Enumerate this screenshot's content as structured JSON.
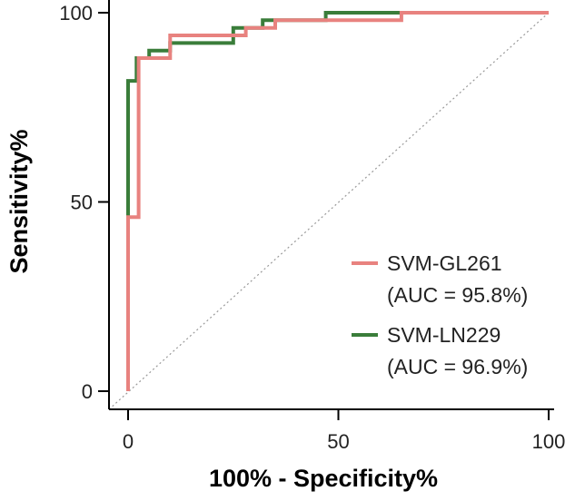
{
  "chart_data": {
    "type": "line",
    "title": "",
    "xlabel": "100% - Specificity%",
    "ylabel": "Sensitivity%",
    "xlim": [
      0,
      100
    ],
    "ylim": [
      0,
      100
    ],
    "x_ticks": [
      "0",
      "50",
      "100"
    ],
    "y_ticks": [
      "0",
      "50",
      "100"
    ],
    "grid": false,
    "legend_position": "bottom-right",
    "reference_line": {
      "style": "dotted",
      "color": "#999999",
      "from": [
        0,
        0
      ],
      "to": [
        100,
        100
      ]
    },
    "series": [
      {
        "name": "SVM-GL261",
        "auc_label": "(AUC = 95.8%)",
        "color": "#e8827f",
        "points": [
          [
            0,
            0
          ],
          [
            0,
            46
          ],
          [
            2.5,
            46
          ],
          [
            2.5,
            88
          ],
          [
            10,
            88
          ],
          [
            10,
            94
          ],
          [
            28,
            94
          ],
          [
            28,
            96
          ],
          [
            35,
            96
          ],
          [
            35,
            98
          ],
          [
            65,
            98
          ],
          [
            65,
            100
          ],
          [
            100,
            100
          ]
        ]
      },
      {
        "name": "SVM-LN229",
        "auc_label": "(AUC = 96.9%)",
        "color": "#3a7d3a",
        "points": [
          [
            0,
            0
          ],
          [
            0,
            47
          ],
          [
            0,
            82
          ],
          [
            2,
            82
          ],
          [
            2,
            88
          ],
          [
            5,
            88
          ],
          [
            5,
            90
          ],
          [
            10,
            90
          ],
          [
            10,
            92
          ],
          [
            25,
            92
          ],
          [
            25,
            96
          ],
          [
            32,
            96
          ],
          [
            32,
            98
          ],
          [
            47,
            98
          ],
          [
            47,
            100
          ],
          [
            100,
            100
          ]
        ]
      }
    ]
  }
}
